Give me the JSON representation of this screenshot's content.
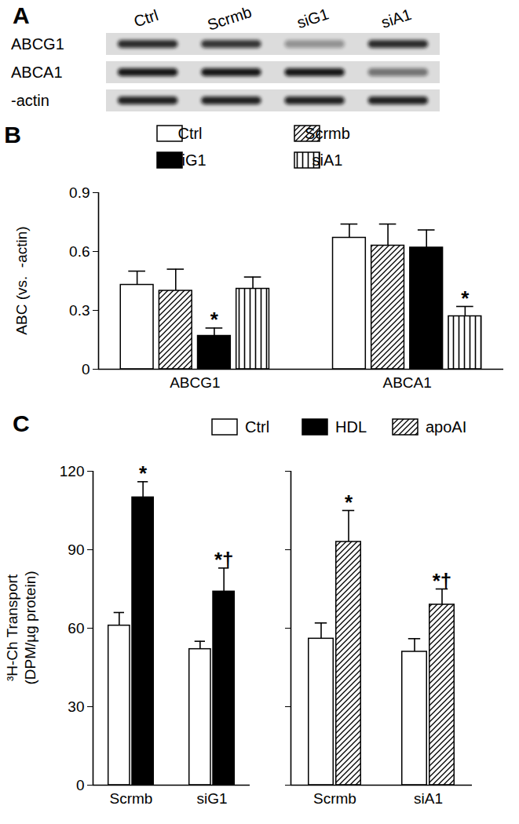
{
  "chart_data": [
    {
      "type": "blot",
      "title": "A",
      "lanes": [
        "Ctrl",
        "Scrmb",
        "siG1",
        "siA1"
      ],
      "rows": [
        {
          "name": "ABCG1",
          "values": [
            0.85,
            0.8,
            0.35,
            0.85
          ]
        },
        {
          "name": "ABCA1",
          "values": [
            0.95,
            0.95,
            0.95,
            0.5
          ]
        },
        {
          "name": "-actin",
          "values": [
            0.9,
            0.9,
            0.9,
            0.9
          ]
        }
      ]
    },
    {
      "type": "bar",
      "title": "B",
      "ylabel": "ABC (vs.  -actin)",
      "categories": [
        "ABCG1",
        "ABCA1"
      ],
      "series": [
        {
          "name": "Ctrl",
          "color": "#ffffff",
          "values": [
            0.43,
            0.67
          ],
          "errors": [
            0.07,
            0.07
          ]
        },
        {
          "name": "Scrmb",
          "color": "#000000",
          "marker": "diagonal",
          "values": [
            0.4,
            0.63
          ],
          "errors": [
            0.11,
            0.11
          ]
        },
        {
          "name": "siG1",
          "color": "#000000",
          "values": [
            0.17,
            0.62
          ],
          "errors": [
            0.04,
            0.09
          ],
          "annotations": [
            "*",
            null
          ]
        },
        {
          "name": "siA1",
          "color": "#000000",
          "marker": "vertical",
          "values": [
            0.41,
            0.27
          ],
          "errors": [
            0.06,
            0.05
          ],
          "annotations": [
            null,
            "*"
          ]
        }
      ],
      "ylim": [
        0,
        0.9
      ],
      "yticks": [
        0,
        0.3,
        0.6,
        0.9
      ],
      "legend": "top"
    },
    {
      "type": "bar",
      "title": "C",
      "ylabel": [
        "³H-Ch Transport",
        "(DPM/µg protein)"
      ],
      "panels": [
        {
          "categories": [
            "Scrmb",
            "siG1"
          ],
          "series": [
            {
              "name": "Ctrl",
              "color": "#ffffff",
              "values": [
                61,
                52
              ],
              "errors": [
                5,
                3
              ]
            },
            {
              "name": "HDL",
              "color": "#000000",
              "values": [
                110,
                74
              ],
              "errors": [
                6,
                9
              ],
              "annotations": [
                "*",
                "*†"
              ]
            }
          ]
        },
        {
          "categories": [
            "Scrmb",
            "siA1"
          ],
          "series": [
            {
              "name": "Ctrl",
              "color": "#ffffff",
              "values": [
                56,
                51
              ],
              "errors": [
                6,
                5
              ]
            },
            {
              "name": "apoAI",
              "color": "#000000",
              "marker": "diagonal",
              "values": [
                93,
                69
              ],
              "errors": [
                12,
                6
              ],
              "annotations": [
                "*",
                "*†"
              ]
            }
          ]
        }
      ],
      "ylim": [
        0,
        120
      ],
      "yticks": [
        0,
        30,
        60,
        90,
        120
      ],
      "legend": "top"
    }
  ]
}
